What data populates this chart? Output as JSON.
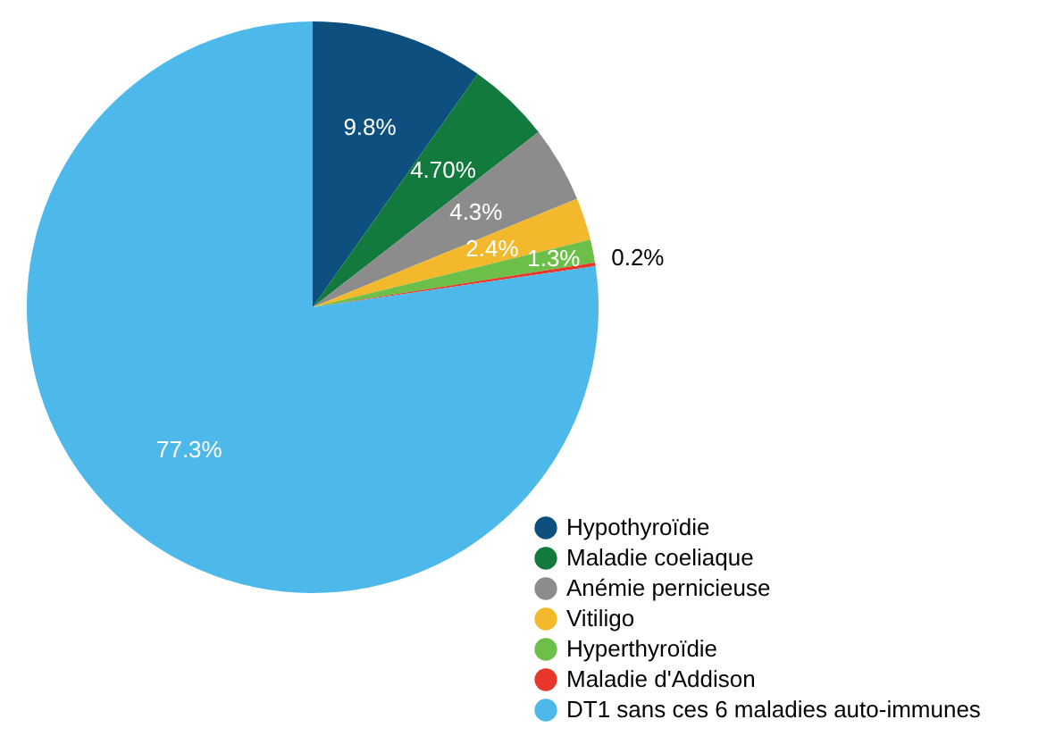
{
  "chart_data": {
    "type": "pie",
    "categories": [
      "Hypothyroïdie",
      "Maladie coeliaque",
      "Anémie pernicieuse",
      "Vitiligo",
      "Hyperthyroïdie",
      "Maladie d'Addison",
      "DT1 sans ces 6 maladies auto-immunes"
    ],
    "values": [
      9.8,
      4.7,
      4.3,
      2.4,
      1.3,
      0.2,
      77.3
    ],
    "value_labels": [
      "9.8%",
      "4.70%",
      "4.3%",
      "2.4%",
      "1.3%",
      "0.2%",
      "77.3%"
    ],
    "colors": [
      "#0d4f7e",
      "#137a3d",
      "#8c8c8c",
      "#f4b82c",
      "#6cc04a",
      "#e8362b",
      "#4db8ea"
    ],
    "legend": "bottom right"
  }
}
